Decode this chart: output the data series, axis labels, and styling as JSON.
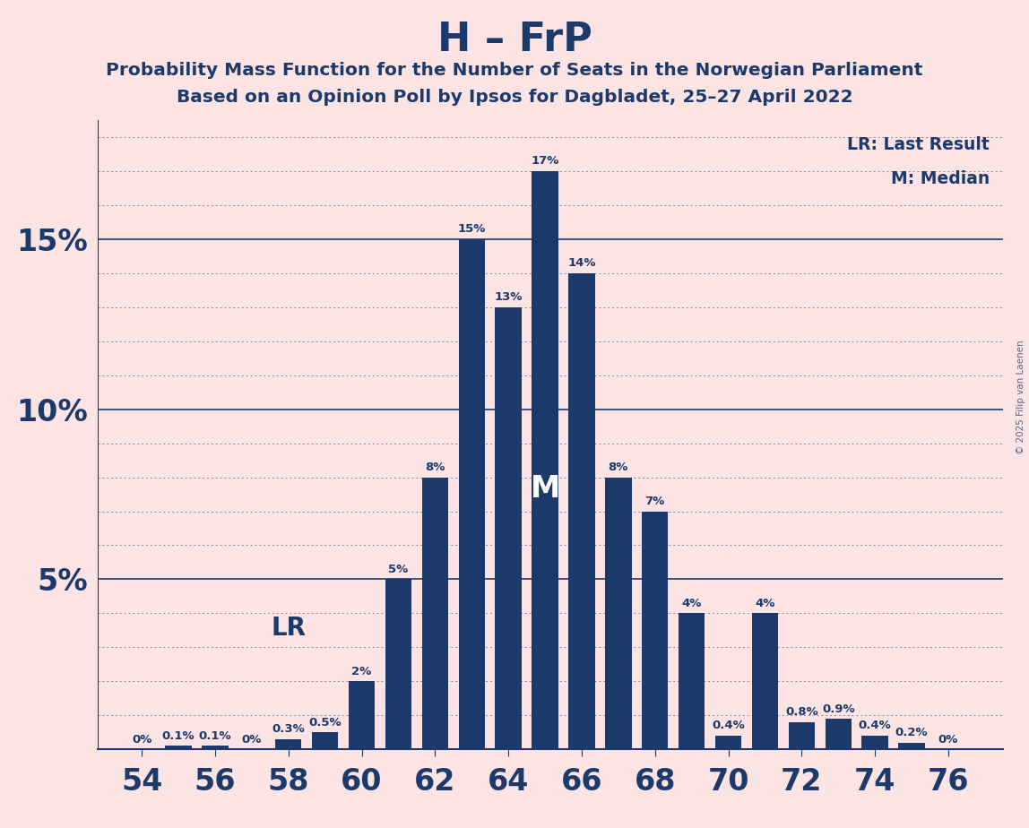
{
  "title": "H – FrP",
  "subtitle1": "Probability Mass Function for the Number of Seats in the Norwegian Parliament",
  "subtitle2": "Based on an Opinion Poll by Ipsos for Dagbladet, 25–27 April 2022",
  "copyright": "© 2025 Filip van Laenen",
  "seats": [
    54,
    55,
    56,
    57,
    58,
    59,
    60,
    61,
    62,
    63,
    64,
    65,
    66,
    67,
    68,
    69,
    70,
    71,
    72,
    73,
    74,
    75,
    76
  ],
  "probabilities": [
    0.0,
    0.1,
    0.1,
    0.0,
    0.3,
    0.5,
    2.0,
    5.0,
    8.0,
    15.0,
    13.0,
    17.0,
    14.0,
    8.0,
    7.0,
    4.0,
    0.4,
    4.0,
    0.8,
    0.9,
    0.4,
    0.2,
    0.0
  ],
  "bar_color": "#1b3a6b",
  "background_color": "#fce4e4",
  "text_color": "#1b3a6b",
  "median_seat": 65,
  "lr_seat": 59,
  "lr_label_seat": 58,
  "lr_label": "LR",
  "median_label": "M",
  "legend_lr": "LR: Last Result",
  "legend_m": "M: Median",
  "xlim_min": 52.8,
  "xlim_max": 77.5,
  "ylim_max": 18.5,
  "bar_width": 0.72
}
